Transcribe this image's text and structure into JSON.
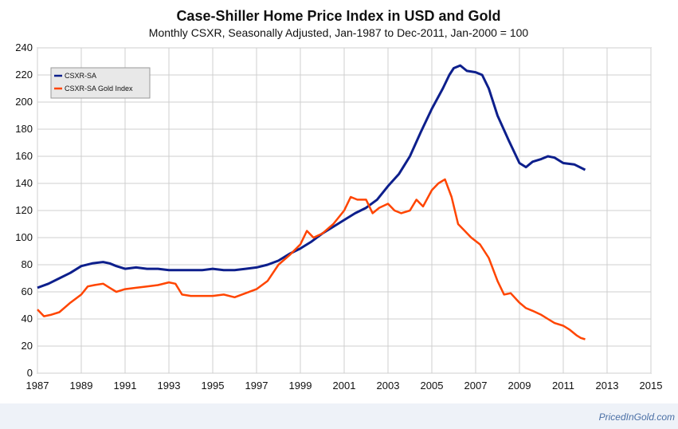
{
  "chart_data": {
    "type": "line",
    "title": "Case-Shiller Home Price Index in USD and Gold",
    "subtitle": "Monthly CSXR, Seasonally Adjusted, Jan-1987 to Dec-2011, Jan-2000 = 100",
    "xlabel": "",
    "ylabel": "",
    "xlim": [
      1987,
      2015
    ],
    "ylim": [
      0,
      240
    ],
    "x_ticks": [
      "1987",
      "1989",
      "1991",
      "1993",
      "1995",
      "1997",
      "1999",
      "2001",
      "2003",
      "2005",
      "2007",
      "2009",
      "2011",
      "2013",
      "2015"
    ],
    "y_ticks": [
      "0",
      "20",
      "40",
      "60",
      "80",
      "100",
      "120",
      "140",
      "160",
      "180",
      "200",
      "220",
      "240"
    ],
    "grid": true,
    "legend_position": "top-left",
    "series": [
      {
        "name": "CSXR-SA",
        "color": "#0d1f8c",
        "points": [
          [
            1987.0,
            63
          ],
          [
            1987.5,
            66
          ],
          [
            1988.0,
            70
          ],
          [
            1988.5,
            74
          ],
          [
            1989.0,
            79
          ],
          [
            1989.5,
            81
          ],
          [
            1990.0,
            82
          ],
          [
            1990.3,
            81
          ],
          [
            1990.6,
            79
          ],
          [
            1991.0,
            77
          ],
          [
            1991.5,
            78
          ],
          [
            1992.0,
            77
          ],
          [
            1992.5,
            77
          ],
          [
            1993.0,
            76
          ],
          [
            1993.5,
            76
          ],
          [
            1994.0,
            76
          ],
          [
            1994.5,
            76
          ],
          [
            1995.0,
            77
          ],
          [
            1995.5,
            76
          ],
          [
            1996.0,
            76
          ],
          [
            1996.5,
            77
          ],
          [
            1997.0,
            78
          ],
          [
            1997.5,
            80
          ],
          [
            1998.0,
            83
          ],
          [
            1998.5,
            88
          ],
          [
            1999.0,
            92
          ],
          [
            1999.5,
            97
          ],
          [
            2000.0,
            103
          ],
          [
            2000.5,
            108
          ],
          [
            2001.0,
            113
          ],
          [
            2001.5,
            118
          ],
          [
            2002.0,
            122
          ],
          [
            2002.5,
            128
          ],
          [
            2003.0,
            138
          ],
          [
            2003.5,
            147
          ],
          [
            2004.0,
            160
          ],
          [
            2004.5,
            178
          ],
          [
            2005.0,
            195
          ],
          [
            2005.5,
            210
          ],
          [
            2005.8,
            220
          ],
          [
            2006.0,
            225
          ],
          [
            2006.3,
            227
          ],
          [
            2006.6,
            223
          ],
          [
            2007.0,
            222
          ],
          [
            2007.3,
            220
          ],
          [
            2007.6,
            210
          ],
          [
            2008.0,
            190
          ],
          [
            2008.5,
            172
          ],
          [
            2009.0,
            155
          ],
          [
            2009.3,
            152
          ],
          [
            2009.6,
            156
          ],
          [
            2010.0,
            158
          ],
          [
            2010.3,
            160
          ],
          [
            2010.6,
            159
          ],
          [
            2011.0,
            155
          ],
          [
            2011.5,
            154
          ],
          [
            2012.0,
            150
          ]
        ]
      },
      {
        "name": "CSXR-SA Gold Index",
        "color": "#ff4500",
        "points": [
          [
            1987.0,
            47
          ],
          [
            1987.3,
            42
          ],
          [
            1987.6,
            43
          ],
          [
            1988.0,
            45
          ],
          [
            1988.5,
            52
          ],
          [
            1989.0,
            58
          ],
          [
            1989.3,
            64
          ],
          [
            1989.6,
            65
          ],
          [
            1990.0,
            66
          ],
          [
            1990.3,
            63
          ],
          [
            1990.6,
            60
          ],
          [
            1991.0,
            62
          ],
          [
            1991.5,
            63
          ],
          [
            1992.0,
            64
          ],
          [
            1992.5,
            65
          ],
          [
            1993.0,
            67
          ],
          [
            1993.3,
            66
          ],
          [
            1993.6,
            58
          ],
          [
            1994.0,
            57
          ],
          [
            1994.5,
            57
          ],
          [
            1995.0,
            57
          ],
          [
            1995.5,
            58
          ],
          [
            1996.0,
            56
          ],
          [
            1996.5,
            59
          ],
          [
            1997.0,
            62
          ],
          [
            1997.5,
            68
          ],
          [
            1998.0,
            80
          ],
          [
            1998.5,
            87
          ],
          [
            1999.0,
            95
          ],
          [
            1999.3,
            105
          ],
          [
            1999.6,
            100
          ],
          [
            2000.0,
            103
          ],
          [
            2000.5,
            110
          ],
          [
            2001.0,
            120
          ],
          [
            2001.3,
            130
          ],
          [
            2001.6,
            128
          ],
          [
            2002.0,
            128
          ],
          [
            2002.3,
            118
          ],
          [
            2002.6,
            122
          ],
          [
            2003.0,
            125
          ],
          [
            2003.3,
            120
          ],
          [
            2003.6,
            118
          ],
          [
            2004.0,
            120
          ],
          [
            2004.3,
            128
          ],
          [
            2004.6,
            123
          ],
          [
            2005.0,
            135
          ],
          [
            2005.3,
            140
          ],
          [
            2005.6,
            143
          ],
          [
            2005.9,
            130
          ],
          [
            2006.2,
            110
          ],
          [
            2006.5,
            105
          ],
          [
            2006.8,
            100
          ],
          [
            2007.2,
            95
          ],
          [
            2007.6,
            85
          ],
          [
            2008.0,
            68
          ],
          [
            2008.3,
            58
          ],
          [
            2008.6,
            59
          ],
          [
            2009.0,
            52
          ],
          [
            2009.3,
            48
          ],
          [
            2009.6,
            46
          ],
          [
            2010.0,
            43
          ],
          [
            2010.3,
            40
          ],
          [
            2010.6,
            37
          ],
          [
            2011.0,
            35
          ],
          [
            2011.3,
            32
          ],
          [
            2011.6,
            28
          ],
          [
            2011.8,
            26
          ],
          [
            2012.0,
            25
          ]
        ]
      }
    ]
  },
  "watermark": "PricedInGold.com"
}
